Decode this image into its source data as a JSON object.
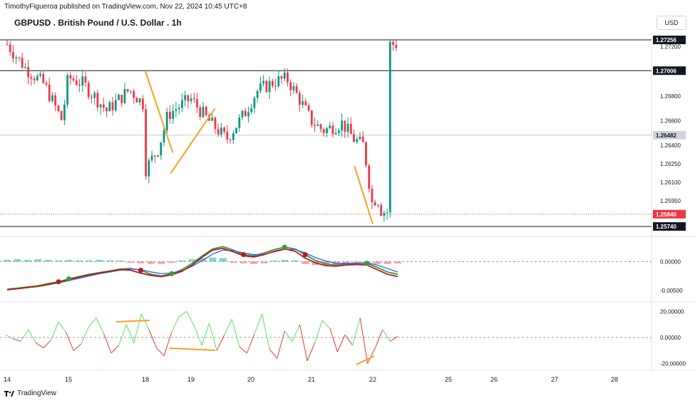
{
  "header": {
    "publish_line": "TimothyFigueroa published on TradingView.com, Nov 22, 2024 10:45 UTC+8",
    "symbol_title": "GBPUSD . British Pound / U.S. Dollar . 1h",
    "currency_button": "USD"
  },
  "footer": {
    "brand": "TradingView",
    "logo_icon": "tradingview-logo-icon"
  },
  "chart_data": [
    {
      "type": "candlestick",
      "title": "GBPUSD . British Pound / U.S. Dollar . 1h",
      "ylim": [
        1.257,
        1.2732
      ],
      "price_ticks": [
        "1.27200",
        "1.26800",
        "1.26600",
        "1.26400",
        "1.26250",
        "1.26100",
        "1.25950"
      ],
      "price_tick_values": [
        1.272,
        1.268,
        1.266,
        1.264,
        1.2625,
        1.261,
        1.2595
      ],
      "horizontal_levels": [
        {
          "label": "1.27256",
          "value": 1.27256,
          "style": "solid"
        },
        {
          "label": "1.27006",
          "value": 1.27006,
          "style": "solid"
        },
        {
          "label": "1.26482",
          "value": 1.26482,
          "style": "solid-gray"
        },
        {
          "label": "1.25740",
          "value": 1.2574,
          "style": "solid"
        }
      ],
      "last_price": {
        "label": "1.25840",
        "value": 1.2584,
        "color": "#f23645"
      },
      "x_ticks": [
        "14",
        "15",
        "18",
        "19",
        "20",
        "21",
        "22",
        "25",
        "26",
        "27",
        "28"
      ],
      "colors": {
        "up": "#089981",
        "down": "#f23645",
        "trendline": "#f7a21b"
      },
      "trendlines": [
        {
          "from": [
            17.5,
            1.27
          ],
          "to": [
            18.6,
            1.2634
          ]
        },
        {
          "from": [
            18.55,
            1.2617
          ],
          "to": [
            19.4,
            1.267
          ]
        },
        {
          "from": [
            21.7,
            1.2623
          ],
          "to": [
            22.0,
            1.2576
          ]
        }
      ]
    },
    {
      "type": "line",
      "name": "oscillator-1",
      "ylim": [
        -0.0065,
        0.004
      ],
      "ticks": [
        "0.00000",
        "-0.00500"
      ],
      "tick_values": [
        0.0,
        -0.005
      ],
      "series": [
        {
          "color": "#3a9a3a",
          "values": [
            -0.0048,
            -0.0046,
            -0.0044,
            -0.0042,
            -0.0038,
            -0.0035,
            -0.003,
            -0.0026,
            -0.0022,
            -0.0019,
            -0.0016,
            -0.0013,
            -0.0012,
            -0.0015,
            -0.0022,
            -0.0025,
            -0.0021,
            -0.0014,
            -0.0003,
            0.001,
            0.0022,
            0.0026,
            0.002,
            0.0012,
            0.001,
            0.0015,
            0.0021,
            0.0025,
            0.0022,
            0.0012,
            0.0002,
            -0.0004,
            -0.0006,
            -0.0004,
            -0.0003,
            -0.0003,
            -0.001,
            -0.0018,
            -0.0022
          ]
        },
        {
          "color": "#2962ff",
          "values": [
            -0.0048,
            -0.0047,
            -0.0045,
            -0.0043,
            -0.004,
            -0.0037,
            -0.0033,
            -0.0029,
            -0.0025,
            -0.0021,
            -0.0018,
            -0.0015,
            -0.0013,
            -0.0014,
            -0.0018,
            -0.0021,
            -0.002,
            -0.0016,
            -0.0008,
            0.0002,
            0.0013,
            0.002,
            0.0019,
            0.0015,
            0.0012,
            0.0013,
            0.0017,
            0.0021,
            0.0021,
            0.0015,
            0.0007,
            0.0001,
            -0.0003,
            -0.0003,
            -0.0003,
            -0.0002,
            -0.0006,
            -0.0012,
            -0.0018
          ]
        },
        {
          "color": "#b71c1c",
          "values": [
            -0.0049,
            -0.0047,
            -0.0045,
            -0.0043,
            -0.004,
            -0.0036,
            -0.0031,
            -0.0027,
            -0.0023,
            -0.002,
            -0.0017,
            -0.0014,
            -0.0015,
            -0.002,
            -0.0024,
            -0.0026,
            -0.0023,
            -0.0017,
            -0.0006,
            0.0008,
            0.002,
            0.0023,
            0.0017,
            0.001,
            0.0008,
            0.0012,
            0.0018,
            0.0022,
            0.0018,
            0.0006,
            -0.0002,
            -0.0007,
            -0.0008,
            -0.0006,
            -0.0005,
            -0.0006,
            -0.0014,
            -0.0022,
            -0.0026
          ]
        }
      ],
      "histogram": [
        0.0003,
        0.0004,
        0.0003,
        0.0004,
        0.0003,
        0.0002,
        0.0003,
        0.0002,
        0.0002,
        0.0003,
        0.0002,
        0.0002,
        -0.0002,
        -0.0003,
        -0.0004,
        -0.0004,
        -0.0002,
        0.0002,
        0.0004,
        0.0006,
        0.0007,
        0.0006,
        -0.0002,
        -0.0003,
        -0.0004,
        -0.0003,
        0.0002,
        0.0003,
        0.0002,
        -0.0004,
        -0.0006,
        -0.0006,
        -0.0005,
        -0.0003,
        -0.0002,
        -0.0003,
        -0.0004,
        -0.0004,
        -0.0003
      ]
    },
    {
      "type": "line",
      "name": "oscillator-2",
      "ylim": [
        -24,
        24
      ],
      "ticks": [
        "20.00000",
        "0.00000",
        "-20.00000"
      ],
      "tick_values": [
        20,
        0,
        -20
      ],
      "values": [
        2,
        -1,
        -3,
        6,
        -4,
        -8,
        -2,
        12,
        4,
        -10,
        -5,
        8,
        15,
        3,
        -12,
        -6,
        10,
        -4,
        18,
        6,
        -8,
        -14,
        4,
        16,
        20,
        9,
        -6,
        11,
        -10,
        2,
        14,
        -7,
        -12,
        3,
        18,
        -9,
        -16,
        5,
        -3,
        10,
        -18,
        -4,
        13,
        7,
        -11,
        2,
        -6,
        15,
        -20,
        -8,
        6,
        -3,
        1
      ]
    }
  ]
}
